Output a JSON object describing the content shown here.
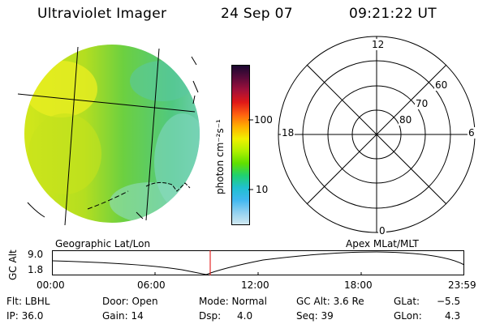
{
  "header": {
    "instrument": "Ultraviolet Imager",
    "date": "24 Sep 07",
    "time": "09:21:22 UT"
  },
  "colorbar": {
    "unit_label": "photon cm⁻²s⁻¹",
    "ticks": [
      "100",
      "10"
    ],
    "colors": [
      "#1a0830",
      "#5a0a3a",
      "#a0103a",
      "#e01818",
      "#ff6010",
      "#ffb000",
      "#f0f000",
      "#b0f000",
      "#60e000",
      "#20d070",
      "#20c0d0",
      "#40b8f0",
      "#90d0f0",
      "#d0e8f0"
    ]
  },
  "polar_plot": {
    "mlt_labels": {
      "top": "12",
      "left": "18",
      "right": "6",
      "bottom": "0"
    },
    "lat_labels": [
      "60",
      "70",
      "80"
    ]
  },
  "timeline": {
    "left_label": "Geographic Lat/Lon",
    "right_label": "Apex MLat/MLT",
    "axis_title": "GC Alt",
    "y_ticks": [
      "9.0",
      "1.8"
    ],
    "x_ticks": [
      "00:00",
      "06:00",
      "12:00",
      "18:00",
      "23:59"
    ],
    "marker_color": "#e00000"
  },
  "info": {
    "flt": "Flt: LBHL",
    "ip": "IP: 36.0",
    "door": "Door: Open",
    "gain": "Gain: 14",
    "mode": "Mode: Normal",
    "dsp_label": "Dsp:",
    "dsp_value": "4.0",
    "gc_alt": "GC Alt: 3.6 Re",
    "seq": "Seq: 39",
    "glat_label": "GLat:",
    "glat_value": "−5.5",
    "glon_label": "GLon:",
    "glon_value": "4.3"
  }
}
